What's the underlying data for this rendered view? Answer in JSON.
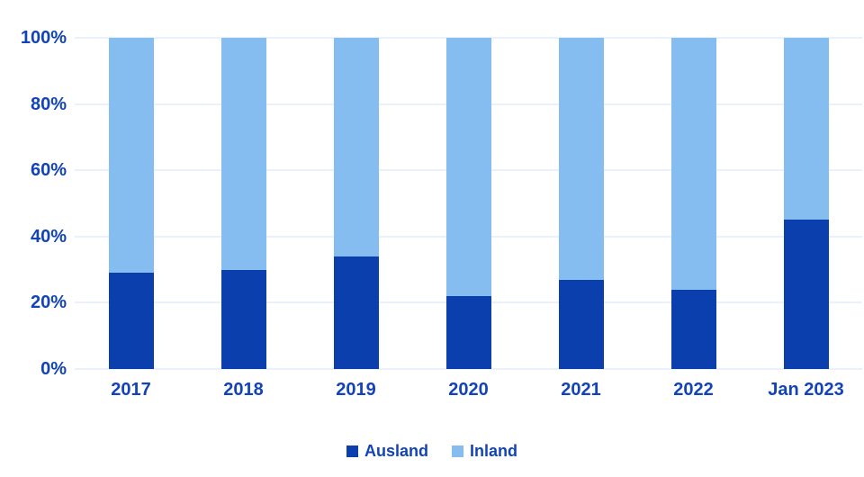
{
  "chart": {
    "background": "#ffffff",
    "colors": {
      "ausland": "#0b3fae",
      "inland": "#85bdf1",
      "axis_text": "#1243b8",
      "gridline": "#e9f1fc"
    },
    "y_ticks": [
      "0%",
      "20%",
      "40%",
      "60%",
      "80%",
      "100%"
    ],
    "legend": [
      {
        "label": "Ausland",
        "color": "#0b3fae"
      },
      {
        "label": "Inland",
        "color": "#85bdf1"
      }
    ]
  },
  "chart_data": {
    "type": "bar",
    "stacked": true,
    "percent_stacked": true,
    "categories": [
      "2017",
      "2018",
      "2019",
      "2020",
      "2021",
      "2022",
      "Jan 2023"
    ],
    "series": [
      {
        "name": "Ausland",
        "color": "#0b3fae",
        "values": [
          29,
          30,
          34,
          22,
          27,
          24,
          45
        ]
      },
      {
        "name": "Inland",
        "color": "#85bdf1",
        "values": [
          71,
          70,
          66,
          78,
          73,
          76,
          55
        ]
      }
    ],
    "title": "",
    "xlabel": "",
    "ylabel": "",
    "ylim": [
      0,
      100
    ],
    "y_tick_interval": 20,
    "grid": true,
    "legend_position": "bottom"
  }
}
